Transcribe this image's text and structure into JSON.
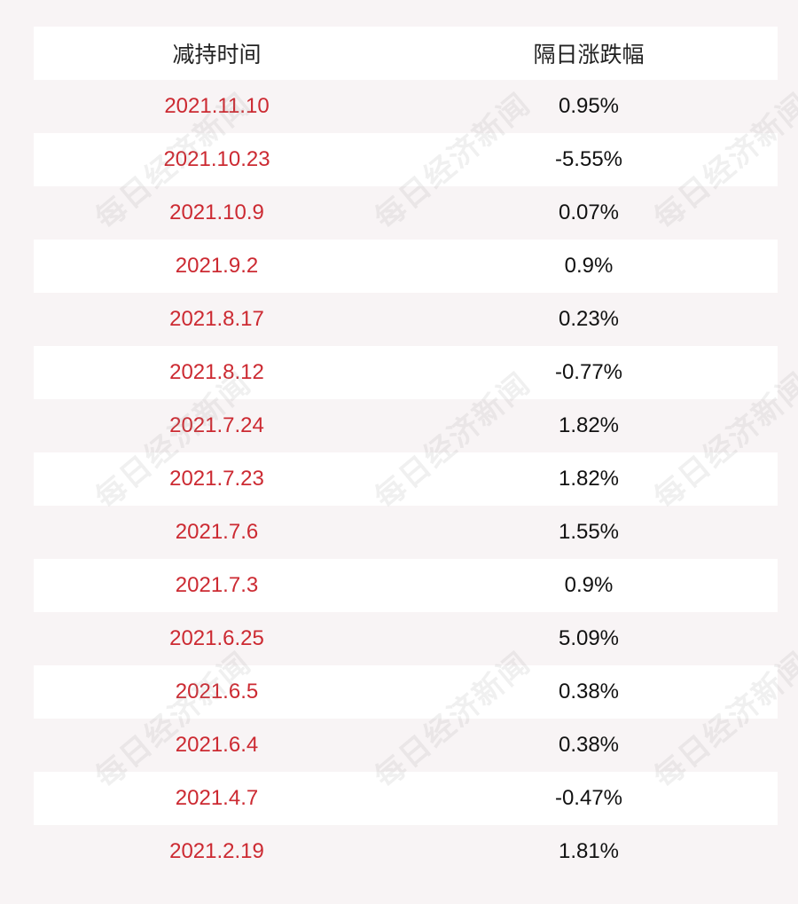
{
  "table": {
    "headers": [
      "减持时间",
      "隔日涨跌幅"
    ],
    "rows": [
      {
        "date": "2021.11.10",
        "change": "0.95%"
      },
      {
        "date": "2021.10.23",
        "change": "-5.55%"
      },
      {
        "date": "2021.10.9",
        "change": "0.07%"
      },
      {
        "date": "2021.9.2",
        "change": "0.9%"
      },
      {
        "date": "2021.8.17",
        "change": "0.23%"
      },
      {
        "date": "2021.8.12",
        "change": "-0.77%"
      },
      {
        "date": "2021.7.24",
        "change": "1.82%"
      },
      {
        "date": "2021.7.23",
        "change": "1.82%"
      },
      {
        "date": "2021.7.6",
        "change": "1.55%"
      },
      {
        "date": "2021.7.3",
        "change": "0.9%"
      },
      {
        "date": "2021.6.25",
        "change": "5.09%"
      },
      {
        "date": "2021.6.5",
        "change": "0.38%"
      },
      {
        "date": "2021.6.4",
        "change": "0.38%"
      },
      {
        "date": "2021.4.7",
        "change": "-0.47%"
      },
      {
        "date": "2021.2.19",
        "change": "1.81%"
      }
    ]
  },
  "watermark": {
    "text": "每日经济新闻"
  },
  "colors": {
    "date": "#cc2a32",
    "change": "#111111",
    "row_alt": "#ffffff",
    "background": "#f8f4f5"
  }
}
